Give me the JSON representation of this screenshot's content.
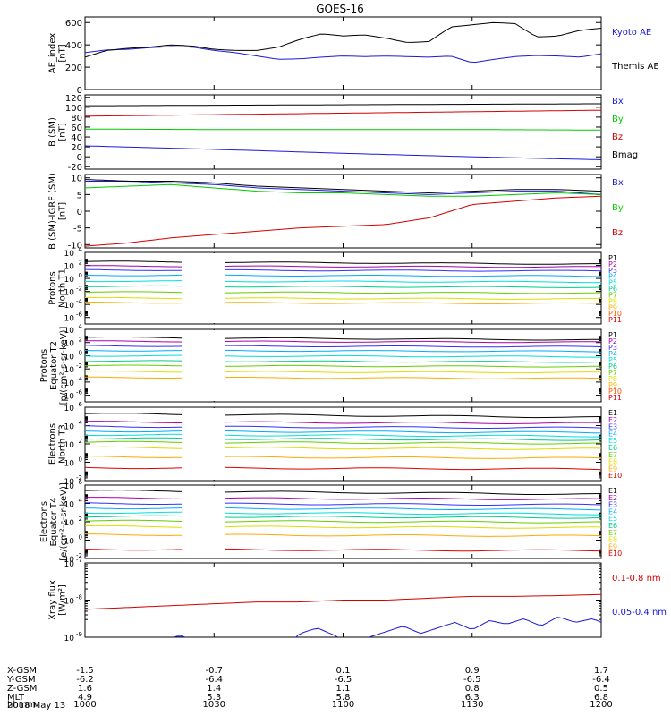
{
  "title": "GOES-16",
  "date_label": "2018 May 13",
  "colors": {
    "black": "#000000",
    "blue": "#1a1ad6",
    "red": "#d40000",
    "green": "#00cc00",
    "P": [
      "#000000",
      "#aa00aa",
      "#3030ff",
      "#00aaff",
      "#00dddd",
      "#00cc88",
      "#66cc00",
      "#dddd00",
      "#ffaa00",
      "#ff5500",
      "#dd0000",
      "#aa0000"
    ],
    "E": [
      "#000000",
      "#aa00aa",
      "#3030ff",
      "#00aaff",
      "#00dddd",
      "#00cc88",
      "#66cc00",
      "#dddd00",
      "#ffaa00",
      "#dd0000",
      "#aa0000"
    ]
  },
  "chart_data": [
    {
      "type": "line",
      "id": "ae",
      "ylabel_lines": [
        "AE_index",
        "[nT]"
      ],
      "ylim": [
        0,
        650
      ],
      "yticks": [
        0,
        200,
        400,
        600
      ],
      "ytick_labels": [
        "0",
        "200",
        "400",
        "600"
      ],
      "legend": [
        {
          "label": "Kyoto AE",
          "color": "#1a1ad6"
        },
        {
          "label": "Themis AE",
          "color": "#000000"
        }
      ],
      "series": [
        {
          "name": "Kyoto AE",
          "color": "#1a1ad6",
          "x": [
            0,
            5,
            10,
            15,
            20,
            25,
            30,
            35,
            40,
            45,
            50,
            55,
            60,
            65,
            70,
            75,
            80,
            85,
            90,
            95,
            100,
            105,
            110,
            115,
            120
          ],
          "y": [
            330,
            355,
            360,
            375,
            385,
            380,
            350,
            330,
            300,
            270,
            275,
            290,
            300,
            295,
            300,
            295,
            290,
            300,
            240,
            270,
            295,
            305,
            300,
            290,
            320
          ]
        },
        {
          "name": "Themis AE",
          "color": "#000000",
          "x": [
            0,
            5,
            10,
            15,
            20,
            25,
            30,
            35,
            40,
            45,
            50,
            55,
            60,
            65,
            70,
            75,
            80,
            85,
            90,
            95,
            100,
            105,
            110,
            115,
            120
          ],
          "y": [
            290,
            350,
            370,
            380,
            400,
            390,
            360,
            350,
            350,
            380,
            450,
            500,
            480,
            490,
            460,
            420,
            430,
            560,
            580,
            600,
            590,
            470,
            480,
            530,
            550
          ]
        }
      ]
    },
    {
      "type": "line",
      "id": "b_sm",
      "ylabel_lines": [
        "B (SM)",
        "[nT]"
      ],
      "ylim": [
        -25,
        125
      ],
      "yticks": [
        -20,
        0,
        20,
        40,
        60,
        80,
        100,
        120
      ],
      "ytick_labels": [
        "-20",
        "0",
        "20",
        "40",
        "60",
        "80",
        "100",
        "120"
      ],
      "legend": [
        {
          "label": "Bx",
          "color": "#1a1ad6"
        },
        {
          "label": "By",
          "color": "#00cc00"
        },
        {
          "label": "Bz",
          "color": "#d40000"
        },
        {
          "label": "Bmag",
          "color": "#000000"
        }
      ],
      "series": [
        {
          "name": "Bx",
          "color": "#1a1ad6",
          "x": [
            0,
            30,
            60,
            90,
            120
          ],
          "y": [
            22,
            15,
            7,
            0,
            -6
          ]
        },
        {
          "name": "By",
          "color": "#00cc00",
          "x": [
            0,
            30,
            60,
            90,
            120
          ],
          "y": [
            56,
            55,
            55,
            55,
            54
          ]
        },
        {
          "name": "Bz",
          "color": "#d40000",
          "x": [
            0,
            30,
            60,
            90,
            120
          ],
          "y": [
            82,
            85,
            88,
            91,
            94
          ]
        },
        {
          "name": "Bmag",
          "color": "#000000",
          "x": [
            0,
            30,
            60,
            90,
            120
          ],
          "y": [
            103,
            104,
            105,
            106,
            107
          ]
        }
      ]
    },
    {
      "type": "line",
      "id": "b_igrf",
      "ylabel_lines": [
        "B (SM)-IGRF (SM)",
        "[nT]"
      ],
      "ylim": [
        -11,
        11
      ],
      "yticks": [
        -10,
        -5,
        0,
        5,
        10
      ],
      "ytick_labels": [
        "-10",
        "-5",
        "0",
        "5",
        "10"
      ],
      "legend": [
        {
          "label": "Bx",
          "color": "#1a1ad6"
        },
        {
          "label": "By",
          "color": "#00cc00"
        },
        {
          "label": "Bz",
          "color": "#d40000"
        }
      ],
      "series": [
        {
          "name": "Bx",
          "color": "#1a1ad6",
          "x": [
            0,
            10,
            20,
            30,
            40,
            50,
            60,
            70,
            80,
            90,
            100,
            110,
            120
          ],
          "y": [
            9,
            9,
            8.5,
            8,
            7,
            6.5,
            6,
            5.5,
            5,
            5.5,
            6,
            6,
            5
          ]
        },
        {
          "name": "By",
          "color": "#00cc00",
          "x": [
            0,
            10,
            20,
            30,
            40,
            50,
            60,
            70,
            80,
            90,
            100,
            110,
            120
          ],
          "y": [
            7,
            7.5,
            8,
            7,
            6,
            5.5,
            5.5,
            5,
            4.5,
            4.5,
            5,
            5.5,
            5
          ]
        },
        {
          "name": "Bz",
          "color": "#d40000",
          "x": [
            0,
            10,
            20,
            30,
            40,
            50,
            60,
            70,
            80,
            90,
            100,
            110,
            120
          ],
          "y": [
            -10.5,
            -9.5,
            -8,
            -7,
            -6,
            -5,
            -4.5,
            -4,
            -2,
            2,
            3,
            4,
            4.5
          ]
        },
        {
          "name": "Bmag",
          "color": "#000000",
          "x": [
            0,
            10,
            20,
            30,
            40,
            50,
            60,
            70,
            80,
            90,
            100,
            110,
            120
          ],
          "y": [
            9.5,
            9,
            9,
            8.5,
            7.5,
            7,
            6.5,
            6,
            5.5,
            6,
            6.5,
            6.5,
            6
          ]
        }
      ]
    },
    {
      "type": "line",
      "id": "protons_north",
      "ylabel_lines": [
        "Protons",
        "North T1"
      ],
      "ylog": true,
      "ylim_exp": [
        -7,
        4
      ],
      "ytick_exps": [
        -6,
        -4,
        -2,
        0,
        2,
        4
      ],
      "ytick_labels": [
        "10",
        "10",
        "10",
        "10",
        "10",
        "10"
      ],
      "ytick_sups": [
        "-6",
        "-4",
        "-2",
        "0",
        "2",
        "4"
      ],
      "gap": [
        22.5,
        32.5
      ],
      "legend": [
        {
          "label": "P1"
        },
        {
          "label": "P2"
        },
        {
          "label": "P3"
        },
        {
          "label": "P4"
        },
        {
          "label": "P5"
        },
        {
          "label": "P6"
        },
        {
          "label": "P7"
        },
        {
          "label": "P8"
        },
        {
          "label": "P9"
        },
        {
          "label": "P10"
        },
        {
          "label": "P11"
        }
      ],
      "channel_levels": [
        2.6,
        1.9,
        1.3,
        0.5,
        -0.4,
        -1.2,
        -2.1,
        -3.0,
        -3.7,
        -4.5,
        -5.3
      ],
      "channel_visible": [
        true,
        true,
        true,
        true,
        true,
        true,
        true,
        true,
        true,
        false,
        false
      ]
    },
    {
      "type": "line",
      "id": "protons_equator",
      "ylabel_lines": [
        "Protons",
        "Equator T2",
        "[p/(cm²-s-sr-keV)]"
      ],
      "ylog": true,
      "ylim_exp": [
        -7,
        4
      ],
      "ytick_exps": [
        -6,
        -4,
        -2,
        0,
        2,
        4
      ],
      "ytick_labels": [
        "10",
        "10",
        "10",
        "10",
        "10",
        "10"
      ],
      "ytick_sups": [
        "-6",
        "-4",
        "-2",
        "0",
        "2",
        "4"
      ],
      "gap": [
        22.5,
        32.5
      ],
      "legend": [
        {
          "label": "P1"
        },
        {
          "label": "P2"
        },
        {
          "label": "P3"
        },
        {
          "label": "P4"
        },
        {
          "label": "P5"
        },
        {
          "label": "P6"
        },
        {
          "label": "P7"
        },
        {
          "label": "P8"
        },
        {
          "label": "P9"
        },
        {
          "label": "P10"
        },
        {
          "label": "P11"
        }
      ],
      "channel_levels": [
        2.8,
        2.2,
        1.5,
        0.8,
        0.0,
        -0.8,
        -1.5,
        -2.4,
        -3.3,
        -4.3,
        -5.5
      ],
      "channel_visible": [
        true,
        true,
        true,
        true,
        true,
        true,
        true,
        true,
        true,
        false,
        false
      ]
    },
    {
      "type": "line",
      "id": "electrons_north",
      "ylabel_lines": [
        "Electrons",
        "North T3"
      ],
      "ylog": true,
      "ylim_exp": [
        -2,
        6
      ],
      "ytick_exps": [
        -2,
        0,
        2,
        4,
        6
      ],
      "ytick_labels": [
        "10",
        "10",
        "10",
        "10",
        "10"
      ],
      "ytick_sups": [
        "-2",
        "0",
        "2",
        "4",
        "6"
      ],
      "gap": [
        22.5,
        32.5
      ],
      "legend": [
        {
          "label": "E1"
        },
        {
          "label": "E2"
        },
        {
          "label": "E3"
        },
        {
          "label": "E4"
        },
        {
          "label": "E5"
        },
        {
          "label": "E6"
        },
        {
          "label": "E7"
        },
        {
          "label": "E8"
        },
        {
          "label": "E9"
        },
        {
          "label": "E10"
        }
      ],
      "channel_levels": [
        5.3,
        4.4,
        3.9,
        3.4,
        3.0,
        2.6,
        2.2,
        1.6,
        0.6,
        -0.6
      ],
      "channel_visible": [
        true,
        true,
        true,
        true,
        true,
        true,
        true,
        true,
        true,
        true
      ]
    },
    {
      "type": "line",
      "id": "electrons_equator",
      "ylabel_lines": [
        "Electrons",
        "Equator T4",
        "[e/(cm²-s-sr-keV)]"
      ],
      "ylog": true,
      "ylim_exp": [
        -2,
        6
      ],
      "ytick_exps": [
        -2,
        0,
        2,
        4,
        6
      ],
      "ytick_labels": [
        "10",
        "10",
        "10",
        "10",
        "10"
      ],
      "ytick_sups": [
        "-2",
        "0",
        "2",
        "4",
        "6"
      ],
      "gap": [
        22.5,
        32.5
      ],
      "legend": [
        {
          "label": "E1"
        },
        {
          "label": "E2"
        },
        {
          "label": "E3"
        },
        {
          "label": "E4"
        },
        {
          "label": "E5"
        },
        {
          "label": "E6"
        },
        {
          "label": "E7"
        },
        {
          "label": "E8"
        },
        {
          "label": "E9"
        },
        {
          "label": "E10"
        }
      ],
      "channel_levels": [
        5.4,
        4.6,
        4.0,
        3.5,
        3.0,
        2.6,
        2.1,
        1.5,
        0.6,
        -1.0
      ],
      "channel_visible": [
        true,
        true,
        true,
        true,
        true,
        true,
        true,
        true,
        true,
        true
      ]
    },
    {
      "type": "line",
      "id": "xray",
      "ylabel_lines": [
        "Xray flux",
        "[W/m²]"
      ],
      "ylog": true,
      "ylim_exp": [
        -9,
        -7
      ],
      "ytick_exps": [
        -9,
        -8,
        -7
      ],
      "ytick_labels": [
        "10",
        "10",
        "10"
      ],
      "ytick_sups": [
        "-9",
        "-8",
        "-7"
      ],
      "legend": [
        {
          "label": "0.1-0.8 nm",
          "color": "#d40000"
        },
        {
          "label": "0.05-0.4 nm",
          "color": "#1a1ad6"
        }
      ],
      "series": [
        {
          "name": "0.1-0.8 nm",
          "color": "#d40000",
          "x": [
            0,
            10,
            20,
            30,
            40,
            50,
            60,
            70,
            80,
            90,
            100,
            110,
            120
          ],
          "y": [
            -8.25,
            -8.2,
            -8.15,
            -8.1,
            -8.05,
            -8.05,
            -8.0,
            -8.0,
            -7.95,
            -7.9,
            -7.9,
            -7.88,
            -7.85
          ]
        },
        {
          "name": "0.05-0.4 nm",
          "color": "#1a1ad6",
          "x": [
            18,
            22,
            26,
            30,
            34,
            38,
            42,
            46,
            50,
            54,
            58,
            62,
            66,
            70,
            74,
            78,
            82,
            86,
            90,
            94,
            98,
            102,
            106,
            110,
            114,
            118,
            120
          ],
          "y": [
            -9.1,
            -8.95,
            -9.1,
            -9.3,
            -9.2,
            -9.4,
            -9.1,
            -9.3,
            -8.9,
            -8.75,
            -8.95,
            -9.2,
            -9.0,
            -8.85,
            -8.7,
            -8.9,
            -8.75,
            -8.6,
            -8.8,
            -8.55,
            -8.65,
            -8.5,
            -8.7,
            -8.45,
            -8.6,
            -8.5,
            -8.6
          ]
        }
      ]
    }
  ],
  "x_axis": {
    "xlim": [
      0,
      120
    ],
    "tick_positions": [
      0,
      30,
      60,
      90,
      120
    ],
    "row_labels": [
      "X-GSM",
      "Y-GSM",
      "Z-GSM",
      "MLT",
      "hhmm"
    ],
    "columns": [
      {
        "values": [
          "-1.5",
          "-6.2",
          "1.6",
          "4.9",
          "1000"
        ]
      },
      {
        "values": [
          "-0.7",
          "-6.4",
          "1.4",
          "5.3",
          "1030"
        ]
      },
      {
        "values": [
          "0.1",
          "-6.5",
          "1.1",
          "5.8",
          "1100"
        ]
      },
      {
        "values": [
          "0.9",
          "-6.5",
          "0.8",
          "6.3",
          "1130"
        ]
      },
      {
        "values": [
          "1.7",
          "-6.4",
          "0.5",
          "6.8",
          "1200"
        ]
      }
    ]
  }
}
